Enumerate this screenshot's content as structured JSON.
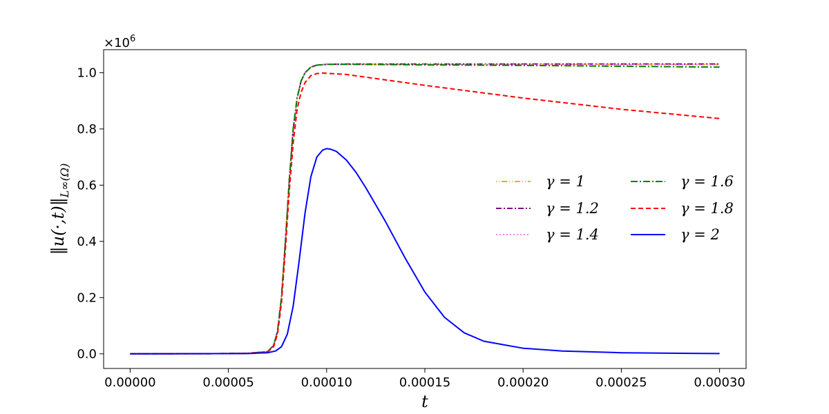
{
  "chart_data": {
    "type": "line",
    "xlabel": "t",
    "ylabel": "‖u(·,t)‖",
    "ylabel_sub": "L∞(Ω)",
    "y_offset_label": "×10",
    "y_offset_exp": "6",
    "xlim": [
      -1.35e-05,
      0.0003135
    ],
    "ylim": [
      -0.052,
      1.082
    ],
    "x_ticks": [
      0,
      5e-05,
      0.0001,
      0.00015,
      0.0002,
      0.00025,
      0.0003
    ],
    "x_tick_labels": [
      "0.00000",
      "0.00005",
      "0.00010",
      "0.00015",
      "0.00020",
      "0.00025",
      "0.00030"
    ],
    "y_ticks": [
      0,
      0.2,
      0.4,
      0.6,
      0.8,
      1.0
    ],
    "y_tick_labels": [
      "0.0",
      "0.2",
      "0.4",
      "0.6",
      "0.8",
      "1.0"
    ],
    "grid": false,
    "legend_placement": "center-right",
    "series": [
      {
        "name": "γ = 1",
        "color": "#ffa500",
        "dash": "1,3,1,3,8,3",
        "x": [
          0,
          4e-05,
          6e-05,
          7e-05,
          7.3e-05,
          7.5e-05,
          7.7e-05,
          7.9e-05,
          8.1e-05,
          8.3e-05,
          8.5e-05,
          8.7e-05,
          8.9e-05,
          9.2e-05,
          9.5e-05,
          0.0001,
          0.00011,
          0.00015,
          0.0002,
          0.00025,
          0.0003
        ],
        "y": [
          0,
          0.0005,
          0.002,
          0.008,
          0.03,
          0.08,
          0.2,
          0.4,
          0.62,
          0.8,
          0.91,
          0.97,
          1.0,
          1.02,
          1.027,
          1.03,
          1.03,
          1.03,
          1.03,
          1.03,
          1.03
        ]
      },
      {
        "name": "γ = 1.2",
        "color": "#800080",
        "dash": "8,3,2,3",
        "x": [
          0,
          4e-05,
          6e-05,
          7e-05,
          7.3e-05,
          7.5e-05,
          7.7e-05,
          7.9e-05,
          8.1e-05,
          8.3e-05,
          8.5e-05,
          8.7e-05,
          8.9e-05,
          9.2e-05,
          9.5e-05,
          0.0001,
          0.00011,
          0.00015,
          0.0002,
          0.00025,
          0.0003
        ],
        "y": [
          0,
          0.0005,
          0.002,
          0.008,
          0.03,
          0.08,
          0.2,
          0.4,
          0.62,
          0.8,
          0.91,
          0.97,
          1.0,
          1.02,
          1.027,
          1.03,
          1.031,
          1.031,
          1.031,
          1.031,
          1.031
        ]
      },
      {
        "name": "γ = 1.4",
        "color": "#ee82ee",
        "dash": "2,3",
        "x": [
          0,
          4e-05,
          6e-05,
          7e-05,
          7.3e-05,
          7.5e-05,
          7.7e-05,
          7.9e-05,
          8.1e-05,
          8.3e-05,
          8.5e-05,
          8.7e-05,
          8.9e-05,
          9.2e-05,
          9.5e-05,
          0.0001,
          0.00011,
          0.00015,
          0.0002,
          0.00025,
          0.0003
        ],
        "y": [
          0,
          0.0005,
          0.002,
          0.008,
          0.03,
          0.08,
          0.2,
          0.4,
          0.62,
          0.8,
          0.91,
          0.97,
          1.0,
          1.02,
          1.027,
          1.03,
          1.03,
          1.03,
          1.029,
          1.029,
          1.028
        ]
      },
      {
        "name": "γ = 1.6",
        "color": "#008000",
        "dash": "10,3,2,3",
        "x": [
          0,
          4e-05,
          6e-05,
          7e-05,
          7.3e-05,
          7.5e-05,
          7.7e-05,
          7.9e-05,
          8.1e-05,
          8.3e-05,
          8.5e-05,
          8.7e-05,
          8.9e-05,
          9.2e-05,
          9.5e-05,
          0.0001,
          0.00011,
          0.00015,
          0.0002,
          0.00025,
          0.0003
        ],
        "y": [
          0,
          0.0005,
          0.002,
          0.008,
          0.03,
          0.08,
          0.2,
          0.4,
          0.62,
          0.8,
          0.91,
          0.97,
          1.0,
          1.02,
          1.027,
          1.03,
          1.03,
          1.028,
          1.026,
          1.023,
          1.02
        ]
      },
      {
        "name": "γ = 1.8",
        "color": "#ff0000",
        "dash": "7,4",
        "x": [
          0,
          4e-05,
          6e-05,
          7e-05,
          7.3e-05,
          7.5e-05,
          7.7e-05,
          7.9e-05,
          8.1e-05,
          8.3e-05,
          8.5e-05,
          8.7e-05,
          8.9e-05,
          9.2e-05,
          9.5e-05,
          9.8e-05,
          0.0001,
          0.00011,
          0.00015,
          0.0002,
          0.00025,
          0.0003
        ],
        "y": [
          0,
          0.0005,
          0.002,
          0.007,
          0.025,
          0.07,
          0.18,
          0.37,
          0.58,
          0.75,
          0.87,
          0.93,
          0.965,
          0.99,
          0.997,
          0.999,
          0.998,
          0.994,
          0.955,
          0.91,
          0.87,
          0.837
        ]
      },
      {
        "name": "γ = 2",
        "color": "#0000ff",
        "dash": "",
        "x": [
          0,
          6e-05,
          7e-05,
          7.4e-05,
          7.7e-05,
          8e-05,
          8.3e-05,
          8.6e-05,
          8.9e-05,
          9.2e-05,
          9.5e-05,
          9.8e-05,
          0.0001,
          0.000102,
          0.000105,
          0.00011,
          0.000115,
          0.00012,
          0.00013,
          0.00014,
          0.00015,
          0.00016,
          0.00017,
          0.00018,
          0.0002,
          0.00022,
          0.00025,
          0.00028,
          0.0003
        ],
        "y": [
          0,
          0.001,
          0.004,
          0.01,
          0.025,
          0.07,
          0.17,
          0.33,
          0.5,
          0.63,
          0.7,
          0.725,
          0.73,
          0.728,
          0.72,
          0.69,
          0.645,
          0.59,
          0.47,
          0.34,
          0.22,
          0.13,
          0.075,
          0.045,
          0.02,
          0.01,
          0.004,
          0.002,
          0.001
        ]
      }
    ]
  }
}
